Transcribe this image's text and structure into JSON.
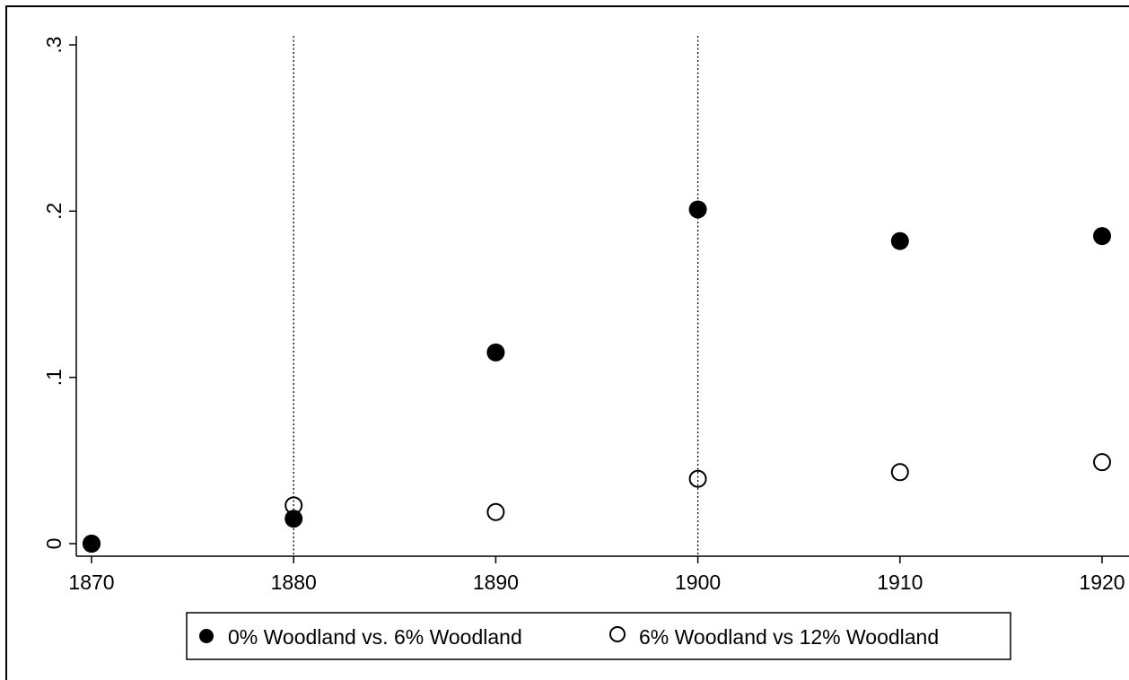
{
  "chart_data": {
    "type": "scatter",
    "title": "",
    "xlabel": "",
    "ylabel": "",
    "xlim": [
      1870,
      1920
    ],
    "ylim": [
      0,
      0.3
    ],
    "x_ticks": [
      1870,
      1880,
      1890,
      1900,
      1910,
      1920
    ],
    "x_tick_labels": [
      "1870",
      "1880",
      "1890",
      "1900",
      "1910",
      "1920"
    ],
    "y_ticks": [
      0,
      0.1,
      0.2,
      0.3
    ],
    "y_tick_labels": [
      "0",
      ".1",
      ".2",
      ".3"
    ],
    "reference_lines_x": [
      1880,
      1900
    ],
    "grid": false,
    "legend_position": "bottom",
    "series": [
      {
        "name": "0% Woodland vs. 6% Woodland",
        "marker": "filled-circle",
        "color": "#000000",
        "x": [
          1870,
          1880,
          1890,
          1900,
          1910,
          1920
        ],
        "y": [
          0.0,
          0.015,
          0.115,
          0.201,
          0.182,
          0.185
        ]
      },
      {
        "name": "6% Woodland vs 12% Woodland",
        "marker": "hollow-circle",
        "color": "#000000",
        "x": [
          1870,
          1880,
          1890,
          1900,
          1910,
          1920
        ],
        "y": [
          0.0,
          0.023,
          0.019,
          0.039,
          0.043,
          0.049
        ]
      }
    ]
  }
}
